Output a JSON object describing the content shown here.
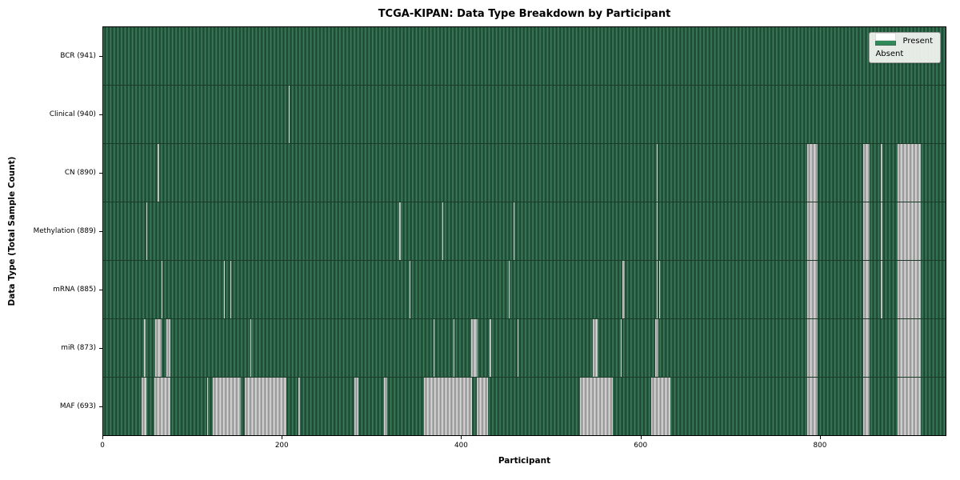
{
  "chart_data": {
    "type": "heatmap",
    "title": "TCGA-KIPAN: Data Type Breakdown by Participant",
    "xlabel": "Participant",
    "ylabel": "Data Type (Total Sample Count)",
    "x_ticks": [
      0,
      200,
      400,
      600,
      800
    ],
    "x_range": [
      0,
      941
    ],
    "n_participants": 941,
    "grid": false,
    "legend": {
      "position": "upper right",
      "entries": [
        {
          "label": "Present",
          "color": "#2e8b57"
        },
        {
          "label": "Absent",
          "color": "#ffffff"
        }
      ]
    },
    "colors": {
      "present": "#2e8b57",
      "present_edge_dark": "#1c4530",
      "absent": "#ffffff",
      "absent_edge_gray": "#8f8f8f"
    },
    "rows": [
      {
        "label": "BCR (941)",
        "data_type": "BCR",
        "sample_count": 941,
        "absent_ranges": []
      },
      {
        "label": "Clinical (940)",
        "data_type": "Clinical",
        "sample_count": 940,
        "absent_ranges": [
          [
            207,
            208
          ]
        ]
      },
      {
        "label": "CN (890)",
        "data_type": "CN",
        "sample_count": 890,
        "absent_ranges": [
          [
            61,
            63
          ],
          [
            618,
            619
          ],
          [
            786,
            798
          ],
          [
            849,
            856
          ],
          [
            869,
            870
          ],
          [
            887,
            913
          ]
        ]
      },
      {
        "label": "Methylation (889)",
        "data_type": "Methylation",
        "sample_count": 889,
        "absent_ranges": [
          [
            48,
            49
          ],
          [
            331,
            332
          ],
          [
            379,
            380
          ],
          [
            458,
            459
          ],
          [
            618,
            619
          ],
          [
            786,
            798
          ],
          [
            849,
            856
          ],
          [
            869,
            870
          ],
          [
            887,
            913
          ]
        ]
      },
      {
        "label": "mRNA (885)",
        "data_type": "mRNA",
        "sample_count": 885,
        "absent_ranges": [
          [
            65,
            66
          ],
          [
            135,
            136
          ],
          [
            142,
            143
          ],
          [
            342,
            343
          ],
          [
            453,
            454
          ],
          [
            580,
            583
          ],
          [
            618,
            619
          ],
          [
            621,
            622
          ],
          [
            786,
            798
          ],
          [
            849,
            856
          ],
          [
            869,
            870
          ],
          [
            887,
            913
          ]
        ]
      },
      {
        "label": "miR (873)",
        "data_type": "miR",
        "sample_count": 873,
        "absent_ranges": [
          [
            46,
            47
          ],
          [
            58,
            65
          ],
          [
            71,
            75
          ],
          [
            164,
            165
          ],
          [
            369,
            370
          ],
          [
            391,
            392
          ],
          [
            411,
            418
          ],
          [
            432,
            433
          ],
          [
            463,
            464
          ],
          [
            547,
            552
          ],
          [
            578,
            579
          ],
          [
            617,
            620
          ],
          [
            786,
            798
          ],
          [
            849,
            856
          ],
          [
            887,
            913
          ]
        ]
      },
      {
        "label": "MAF (693)",
        "data_type": "MAF",
        "sample_count": 693,
        "absent_ranges": [
          [
            43,
            48
          ],
          [
            57,
            75
          ],
          [
            116,
            117
          ],
          [
            122,
            154
          ],
          [
            158,
            205
          ],
          [
            218,
            220
          ],
          [
            281,
            285
          ],
          [
            314,
            317
          ],
          [
            358,
            412
          ],
          [
            417,
            430
          ],
          [
            533,
            569
          ],
          [
            612,
            634
          ],
          [
            786,
            798
          ],
          [
            849,
            856
          ],
          [
            887,
            913
          ]
        ]
      }
    ]
  }
}
